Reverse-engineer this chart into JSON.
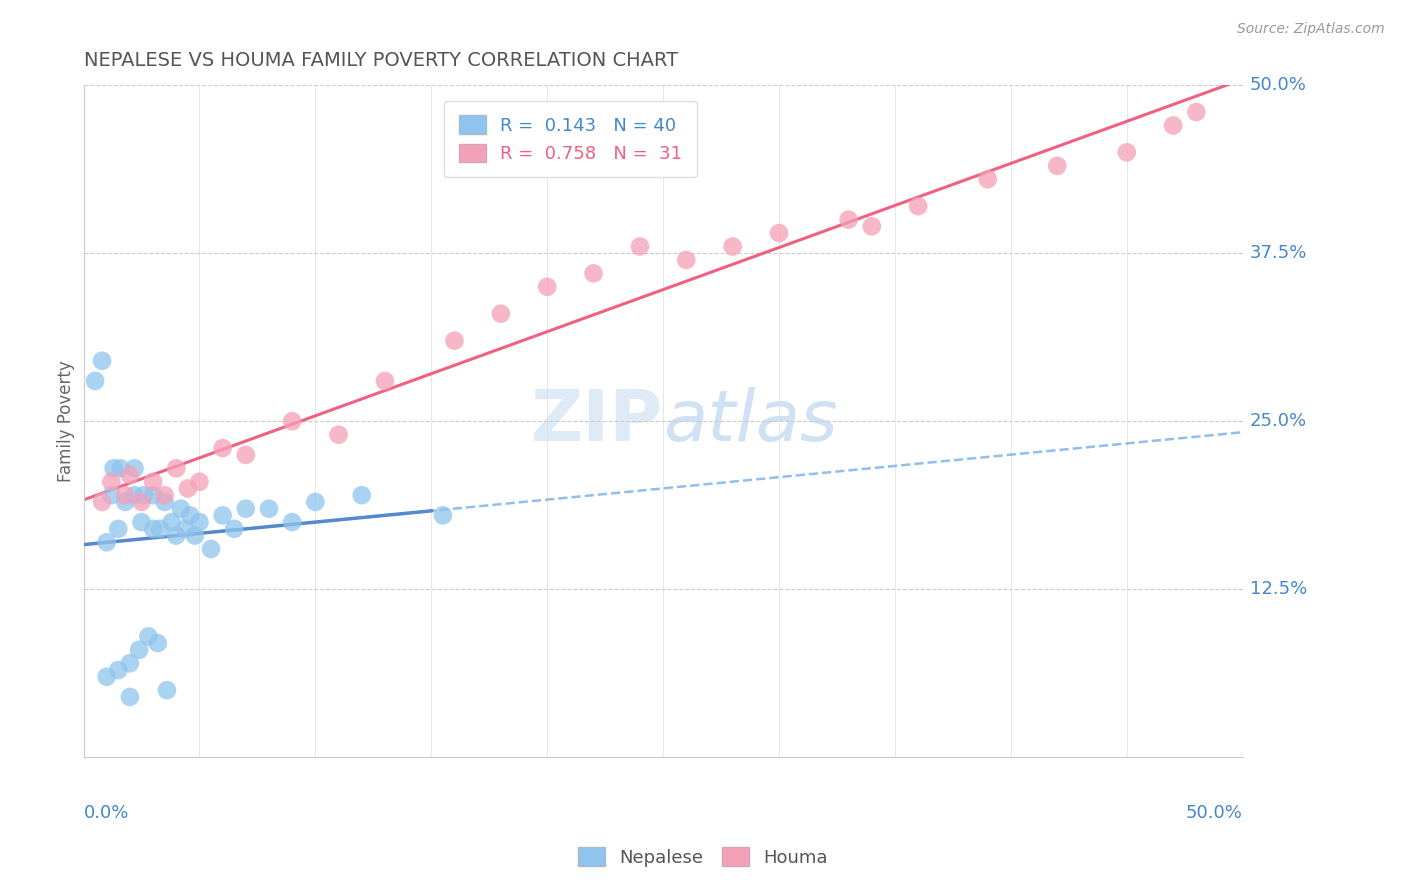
{
  "title": "NEPALESE VS HOUMA FAMILY POVERTY CORRELATION CHART",
  "source": "Source: ZipAtlas.com",
  "ylabel": "Family Poverty",
  "nepalese_R": 0.143,
  "nepalese_N": 40,
  "houma_R": 0.758,
  "houma_N": 31,
  "nepalese_color": "#8EC4ED",
  "houma_color": "#F4A0B8",
  "trend_nepalese_color": "#7EB3E8",
  "trend_houma_color": "#F06080",
  "watermark_color": "#C8DCF0",
  "background_color": "#FFFFFF",
  "grid_color": "#CCCCCC",
  "title_color": "#555555",
  "label_color": "#4488CC",
  "xlim": [
    0.0,
    0.5
  ],
  "ylim": [
    0.0,
    0.5
  ],
  "nepalese_x": [
    0.005,
    0.008,
    0.01,
    0.01,
    0.012,
    0.013,
    0.015,
    0.015,
    0.016,
    0.018,
    0.02,
    0.02,
    0.022,
    0.022,
    0.024,
    0.025,
    0.026,
    0.028,
    0.03,
    0.03,
    0.032,
    0.033,
    0.035,
    0.036,
    0.038,
    0.04,
    0.042,
    0.044,
    0.046,
    0.048,
    0.05,
    0.055,
    0.06,
    0.065,
    0.07,
    0.08,
    0.09,
    0.1,
    0.12,
    0.155
  ],
  "nepalese_y": [
    0.28,
    0.295,
    0.06,
    0.16,
    0.195,
    0.215,
    0.065,
    0.17,
    0.215,
    0.19,
    0.045,
    0.07,
    0.195,
    0.215,
    0.08,
    0.175,
    0.195,
    0.09,
    0.17,
    0.195,
    0.085,
    0.17,
    0.19,
    0.05,
    0.175,
    0.165,
    0.185,
    0.17,
    0.18,
    0.165,
    0.175,
    0.155,
    0.18,
    0.17,
    0.185,
    0.185,
    0.175,
    0.19,
    0.195,
    0.18
  ],
  "houma_x": [
    0.008,
    0.012,
    0.018,
    0.02,
    0.025,
    0.03,
    0.035,
    0.04,
    0.045,
    0.05,
    0.06,
    0.07,
    0.09,
    0.11,
    0.13,
    0.16,
    0.18,
    0.2,
    0.22,
    0.24,
    0.26,
    0.3,
    0.33,
    0.36,
    0.39,
    0.42,
    0.45,
    0.47,
    0.48,
    0.34,
    0.28
  ],
  "houma_y": [
    0.19,
    0.205,
    0.195,
    0.21,
    0.19,
    0.205,
    0.195,
    0.215,
    0.2,
    0.205,
    0.23,
    0.225,
    0.25,
    0.24,
    0.28,
    0.31,
    0.33,
    0.35,
    0.36,
    0.38,
    0.37,
    0.39,
    0.4,
    0.41,
    0.43,
    0.44,
    0.45,
    0.47,
    0.48,
    0.395,
    0.38
  ]
}
